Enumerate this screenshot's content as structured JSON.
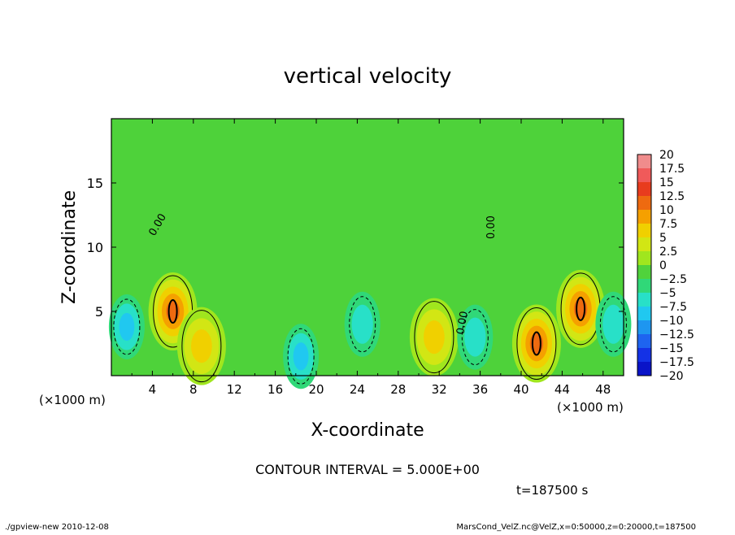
{
  "chart_data": {
    "type": "heatmap",
    "title": "vertical velocity",
    "xlabel": "X-coordinate",
    "ylabel": "Z-coordinate",
    "x_unit_left": "(×1000 m)",
    "x_unit_right": "(×1000 m)",
    "x_ticks": [
      "4",
      "8",
      "12",
      "16",
      "20",
      "24",
      "28",
      "32",
      "36",
      "40",
      "44",
      "48"
    ],
    "y_ticks": [
      "5",
      "10",
      "15"
    ],
    "xlim": [
      0,
      50
    ],
    "ylim": [
      0,
      20
    ],
    "contour_label": "0.00",
    "contour_interval_text": "CONTOUR INTERVAL = 5.000E+00",
    "time_text": "t=187500 s",
    "colorbar": {
      "levels": [
        "20",
        "17.5",
        "15",
        "12.5",
        "10",
        "7.5",
        "5",
        "2.5",
        "0",
        "−2.5",
        "−5",
        "−7.5",
        "−10",
        "−12.5",
        "−15",
        "−17.5",
        "−20"
      ],
      "colors": [
        "#f08c8c",
        "#f05a5a",
        "#e83c1e",
        "#ee6a10",
        "#f5a000",
        "#f0d000",
        "#d2e614",
        "#a0e61e",
        "#50d23c",
        "#30d878",
        "#28e0c8",
        "#20c8f0",
        "#1e96f0",
        "#1e64f0",
        "#1432e6",
        "#0a14c8",
        "#7a1eb4"
      ]
    },
    "features": [
      {
        "sign": "pos",
        "x": 6.0,
        "z": 5.0,
        "peak": 12.5
      },
      {
        "sign": "pos",
        "x": 8.8,
        "z": 2.3,
        "peak": 7.5
      },
      {
        "sign": "pos",
        "x": 31.5,
        "z": 3.0,
        "peak": 7.5
      },
      {
        "sign": "pos",
        "x": 41.5,
        "z": 2.5,
        "peak": 12.5
      },
      {
        "sign": "pos",
        "x": 45.8,
        "z": 5.2,
        "peak": 12.5
      },
      {
        "sign": "neg",
        "x": 1.5,
        "z": 3.8,
        "peak": -7.5
      },
      {
        "sign": "neg",
        "x": 18.5,
        "z": 1.5,
        "peak": -7.5
      },
      {
        "sign": "neg",
        "x": 24.5,
        "z": 4.0,
        "peak": -5
      },
      {
        "sign": "neg",
        "x": 35.5,
        "z": 3.0,
        "peak": -5
      },
      {
        "sign": "neg",
        "x": 49.0,
        "z": 4.0,
        "peak": -5
      }
    ]
  },
  "footer": {
    "left": "./gpview-new   2010-12-08",
    "right": "MarsCond_VelZ.nc@VelZ,x=0:50000,z=0:20000,t=187500"
  }
}
